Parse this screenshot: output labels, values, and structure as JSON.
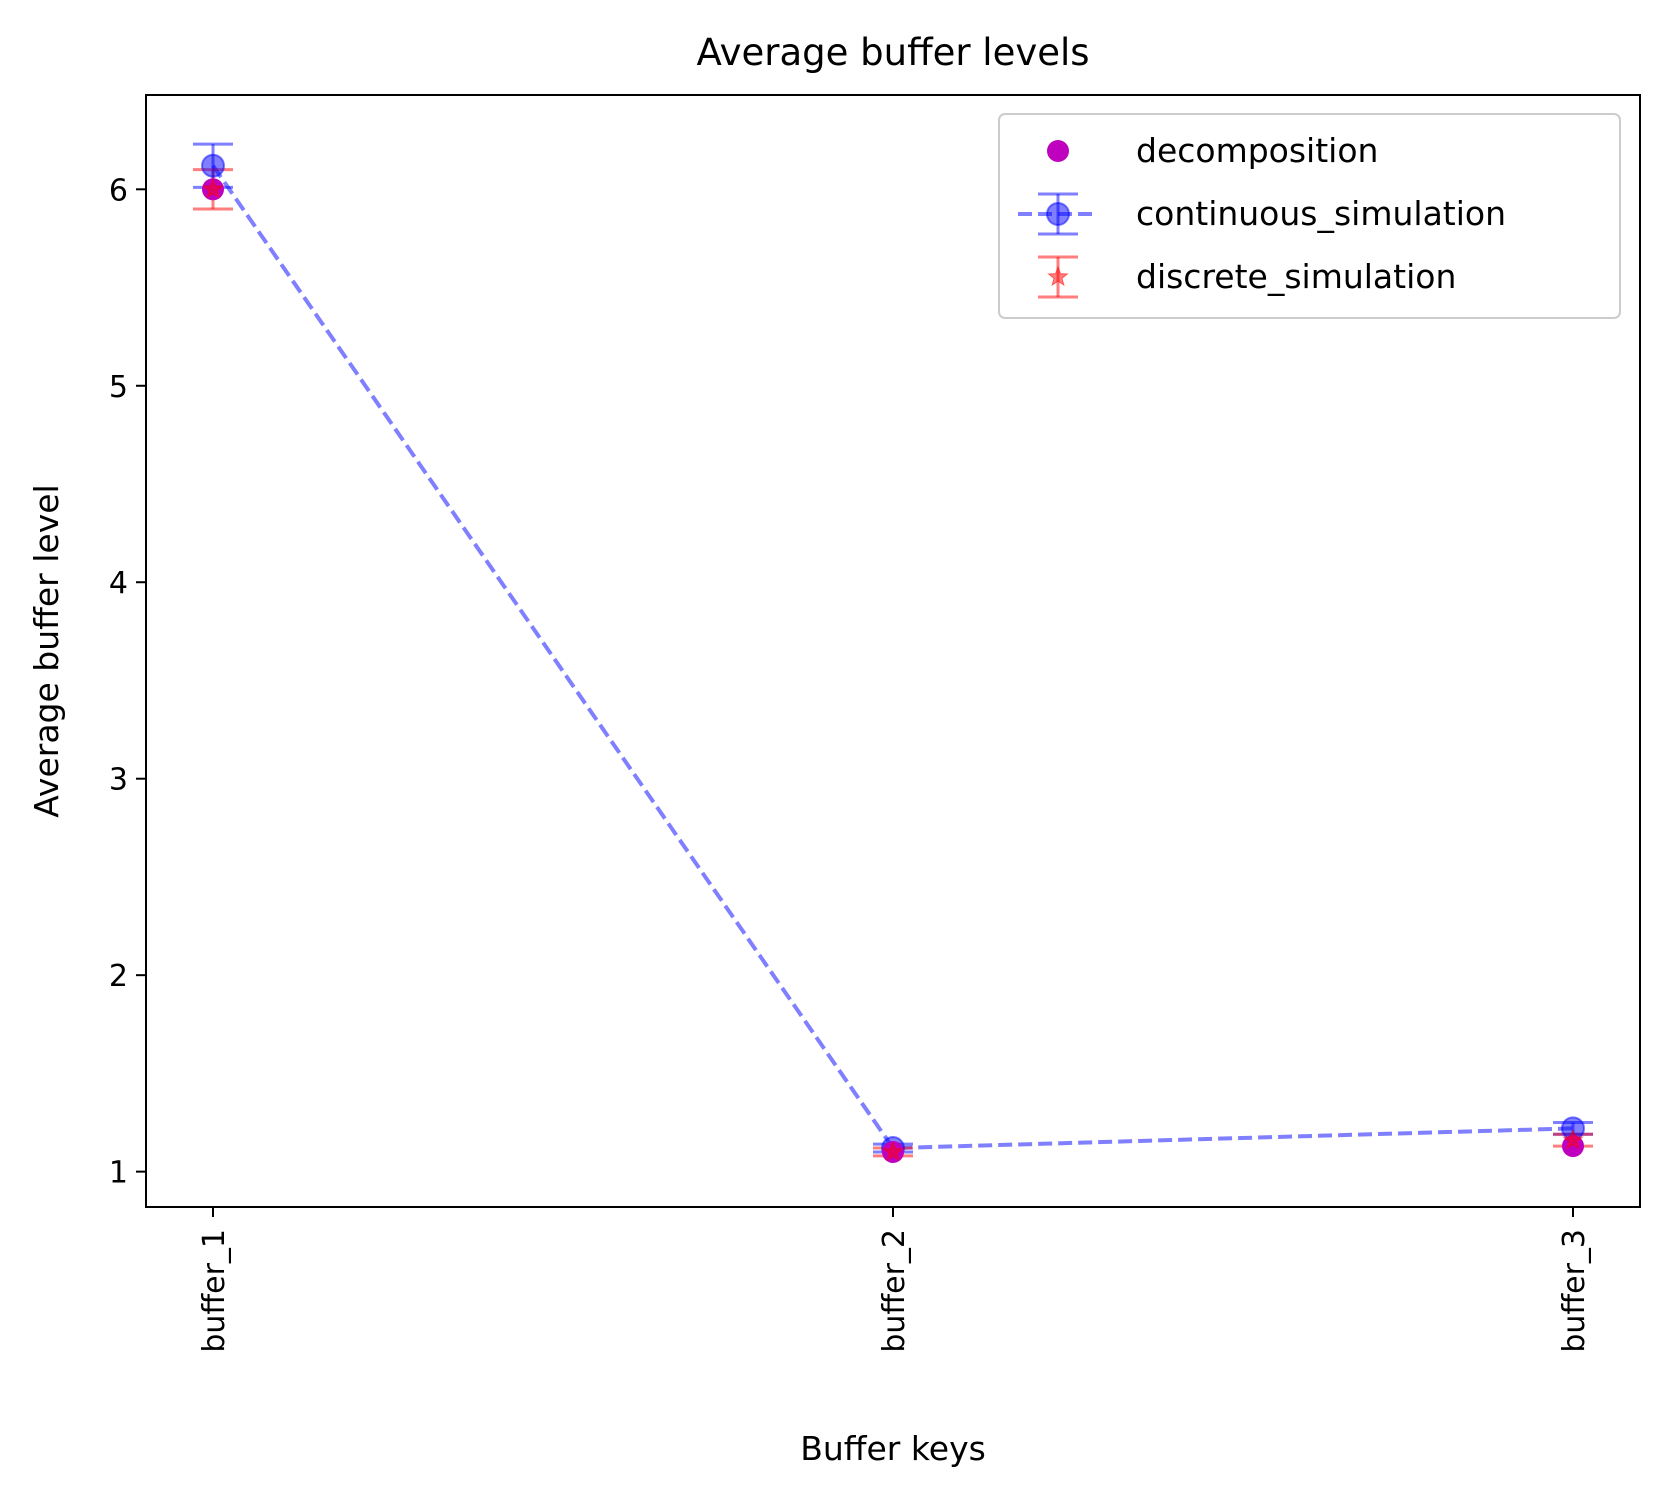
{
  "chart_data": {
    "type": "scatter",
    "title": "Average buffer levels",
    "xlabel": "Buffer keys",
    "ylabel": "Average buffer level",
    "categories": [
      "buffer_1",
      "buffer_2",
      "buffer_3"
    ],
    "ylim": [
      0.82,
      6.48
    ],
    "yticks": [
      1,
      2,
      3,
      4,
      5,
      6
    ],
    "grid": false,
    "legend_position": "top-right",
    "series": [
      {
        "name": "decomposition",
        "marker": "circle",
        "color": "#bf00bf",
        "values": [
          6.0,
          1.1,
          1.13
        ]
      },
      {
        "name": "continuous_simulation",
        "marker": "circle",
        "line": "dashed",
        "color": "#0000ff",
        "values": [
          6.12,
          1.12,
          1.22
        ],
        "errors": [
          0.11,
          0.02,
          0.03
        ]
      },
      {
        "name": "discrete_simulation",
        "marker": "star",
        "color": "#ff0000",
        "values": [
          6.0,
          1.1,
          1.16
        ],
        "errors": [
          0.1,
          0.02,
          0.03
        ]
      }
    ]
  }
}
